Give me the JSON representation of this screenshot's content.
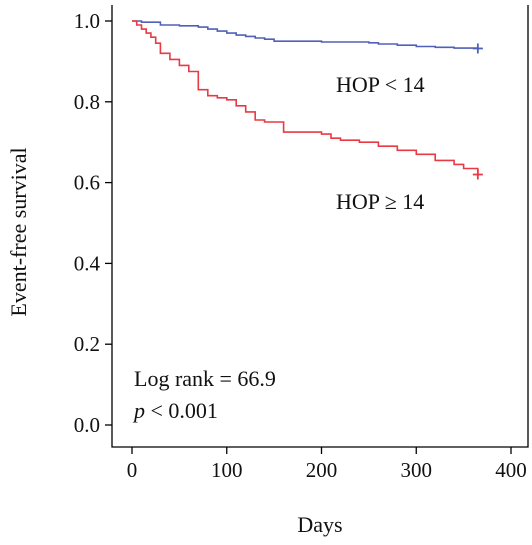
{
  "chart_data": {
    "type": "line",
    "title": "",
    "xlabel": "Days",
    "ylabel": "Event-free survival",
    "xlim": [
      0,
      400
    ],
    "ylim": [
      0,
      1.0
    ],
    "x_ticks": [
      0,
      100,
      200,
      300,
      400
    ],
    "x_tick_labels": [
      "0",
      "100",
      "200",
      "300",
      "400"
    ],
    "y_ticks": [
      0.0,
      0.2,
      0.4,
      0.6,
      0.8,
      1.0
    ],
    "y_tick_labels": [
      "0.0",
      "0.2",
      "0.4",
      "0.6",
      "0.8",
      "1.0"
    ],
    "grid": false,
    "step": true,
    "series": [
      {
        "name": "HOP < 14",
        "color": "#5060b8",
        "x": [
          0,
          10,
          30,
          50,
          70,
          80,
          90,
          100,
          110,
          120,
          130,
          140,
          150,
          200,
          250,
          260,
          280,
          300,
          320,
          340,
          365
        ],
        "y": [
          1.0,
          0.997,
          0.99,
          0.988,
          0.985,
          0.98,
          0.975,
          0.97,
          0.965,
          0.962,
          0.958,
          0.955,
          0.95,
          0.948,
          0.946,
          0.943,
          0.94,
          0.937,
          0.935,
          0.933,
          0.932
        ],
        "censor_x": 365,
        "censor_y": 0.932
      },
      {
        "name": "HOP ≥ 14",
        "color": "#e83a44",
        "x": [
          0,
          5,
          10,
          15,
          20,
          25,
          30,
          40,
          50,
          60,
          70,
          80,
          90,
          100,
          110,
          120,
          130,
          140,
          160,
          200,
          210,
          220,
          240,
          260,
          280,
          300,
          320,
          340,
          350,
          365
        ],
        "y": [
          1.0,
          0.99,
          0.98,
          0.97,
          0.96,
          0.945,
          0.92,
          0.905,
          0.89,
          0.875,
          0.83,
          0.815,
          0.81,
          0.805,
          0.79,
          0.775,
          0.755,
          0.75,
          0.725,
          0.72,
          0.71,
          0.705,
          0.7,
          0.69,
          0.68,
          0.67,
          0.655,
          0.645,
          0.635,
          0.62
        ],
        "censor_x": 365,
        "censor_y": 0.62
      }
    ],
    "annotations": {
      "label_lower_group": "HOP < 14",
      "label_higher_group": "HOP ≥ 14",
      "log_rank": "Log rank = 66.9",
      "p_symbol": "p",
      "p_value": " < 0.001"
    }
  }
}
